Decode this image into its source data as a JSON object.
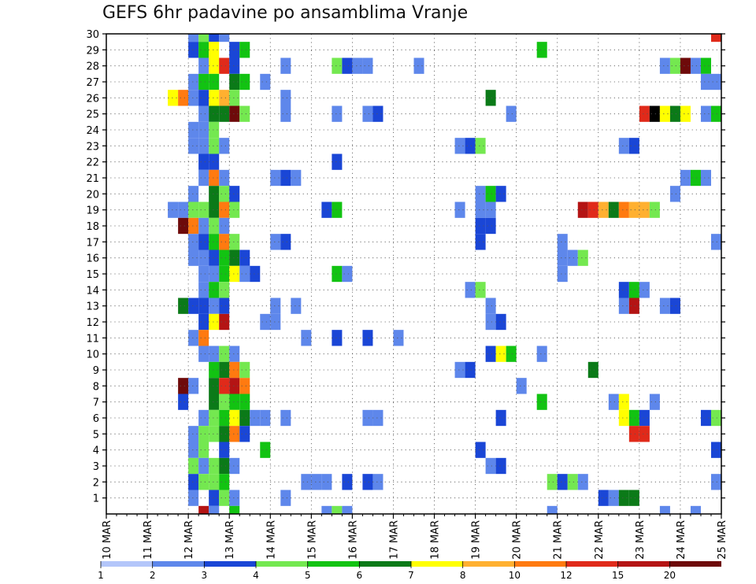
{
  "chart_data": {
    "type": "heatmap",
    "title": "GEFS 6hr padavine po ansamblima Vranje",
    "xlabel": "",
    "ylabel": "",
    "x_ticks": [
      "10 MAR",
      "11 MAR",
      "12 MAR",
      "13 MAR",
      "14 MAR",
      "15 MAR",
      "16 MAR",
      "17 MAR",
      "18 MAR",
      "19 MAR",
      "20 MAR",
      "21 MAR",
      "22 MAR",
      "23 MAR",
      "24 MAR",
      "25 MAR"
    ],
    "y_ticks": [
      1,
      2,
      3,
      4,
      5,
      6,
      7,
      8,
      9,
      10,
      11,
      12,
      13,
      14,
      15,
      16,
      17,
      18,
      19,
      20,
      21,
      22,
      23,
      24,
      25,
      26,
      27,
      28,
      29,
      30
    ],
    "x_range": [
      0,
      60
    ],
    "y_range": [
      0,
      30
    ],
    "grid": true,
    "legend": {
      "placement": "bottom",
      "labels": [
        "1",
        "2",
        "3",
        "4",
        "5",
        "6",
        "7",
        "8",
        "10",
        "12",
        "15",
        "20"
      ],
      "colors": [
        "#b3c6fa",
        "#5e87eb",
        "#1a46d6",
        "#74e850",
        "#12c312",
        "#0b7a18",
        "#ffff00",
        "#ffb030",
        "#ff7a10",
        "#e02a1a",
        "#b41414",
        "#6e0a0a"
      ]
    },
    "cells": [
      [
        30,
        8,
        1
      ],
      [
        30,
        9,
        3
      ],
      [
        30,
        10,
        2
      ],
      [
        30,
        11,
        1
      ],
      [
        30,
        59,
        9
      ],
      [
        29,
        8,
        2
      ],
      [
        29,
        9,
        4
      ],
      [
        29,
        10,
        6
      ],
      [
        29,
        12,
        2
      ],
      [
        29,
        13,
        4
      ],
      [
        29,
        42,
        4
      ],
      [
        28,
        9,
        1
      ],
      [
        28,
        10,
        6
      ],
      [
        28,
        11,
        9
      ],
      [
        28,
        12,
        2
      ],
      [
        28,
        17,
        1
      ],
      [
        28,
        22,
        3
      ],
      [
        28,
        23,
        2
      ],
      [
        28,
        24,
        1
      ],
      [
        28,
        25,
        1
      ],
      [
        28,
        30,
        1
      ],
      [
        28,
        54,
        1
      ],
      [
        28,
        55,
        3
      ],
      [
        28,
        56,
        11
      ],
      [
        28,
        57,
        1
      ],
      [
        28,
        58,
        4
      ],
      [
        27,
        8,
        1
      ],
      [
        27,
        9,
        4
      ],
      [
        27,
        10,
        4
      ],
      [
        27,
        12,
        5
      ],
      [
        27,
        13,
        4
      ],
      [
        27,
        15,
        1
      ],
      [
        27,
        58,
        1
      ],
      [
        27,
        59,
        1
      ],
      [
        26,
        6,
        6
      ],
      [
        26,
        7,
        8
      ],
      [
        26,
        8,
        1
      ],
      [
        26,
        9,
        2
      ],
      [
        26,
        10,
        6
      ],
      [
        26,
        11,
        7
      ],
      [
        26,
        12,
        3
      ],
      [
        26,
        17,
        1
      ],
      [
        26,
        37,
        5
      ],
      [
        26,
        60,
        11
      ],
      [
        25,
        9,
        1
      ],
      [
        25,
        10,
        5
      ],
      [
        25,
        11,
        5
      ],
      [
        25,
        12,
        11
      ],
      [
        25,
        13,
        3
      ],
      [
        25,
        17,
        1
      ],
      [
        25,
        22,
        1
      ],
      [
        25,
        25,
        1
      ],
      [
        25,
        26,
        2
      ],
      [
        25,
        39,
        1
      ],
      [
        25,
        52,
        9
      ],
      [
        25,
        53,
        12
      ],
      [
        25,
        54,
        6
      ],
      [
        25,
        55,
        5
      ],
      [
        25,
        56,
        6
      ],
      [
        25,
        58,
        1
      ],
      [
        25,
        59,
        4
      ],
      [
        25,
        60,
        2
      ],
      [
        25,
        61,
        9
      ],
      [
        24,
        8,
        1
      ],
      [
        24,
        9,
        1
      ],
      [
        24,
        10,
        3
      ],
      [
        23,
        8,
        1
      ],
      [
        23,
        9,
        1
      ],
      [
        23,
        10,
        3
      ],
      [
        23,
        11,
        1
      ],
      [
        23,
        34,
        1
      ],
      [
        23,
        35,
        2
      ],
      [
        23,
        36,
        3
      ],
      [
        23,
        50,
        1
      ],
      [
        23,
        51,
        2
      ],
      [
        22,
        9,
        2
      ],
      [
        22,
        10,
        2
      ],
      [
        22,
        22,
        2
      ],
      [
        21,
        9,
        1
      ],
      [
        21,
        10,
        8
      ],
      [
        21,
        11,
        1
      ],
      [
        21,
        16,
        1
      ],
      [
        21,
        17,
        2
      ],
      [
        21,
        18,
        1
      ],
      [
        21,
        56,
        1
      ],
      [
        21,
        57,
        4
      ],
      [
        21,
        58,
        1
      ],
      [
        21,
        60,
        3
      ],
      [
        20,
        8,
        1
      ],
      [
        20,
        10,
        5
      ],
      [
        20,
        11,
        3
      ],
      [
        20,
        12,
        2
      ],
      [
        20,
        36,
        1
      ],
      [
        20,
        37,
        4
      ],
      [
        20,
        38,
        2
      ],
      [
        20,
        55,
        1
      ],
      [
        19,
        6,
        1
      ],
      [
        19,
        7,
        1
      ],
      [
        19,
        8,
        3
      ],
      [
        19,
        9,
        3
      ],
      [
        19,
        10,
        5
      ],
      [
        19,
        11,
        8
      ],
      [
        19,
        12,
        3
      ],
      [
        19,
        21,
        2
      ],
      [
        19,
        22,
        4
      ],
      [
        19,
        34,
        1
      ],
      [
        19,
        36,
        1
      ],
      [
        19,
        37,
        1
      ],
      [
        19,
        46,
        10
      ],
      [
        19,
        47,
        9
      ],
      [
        19,
        48,
        7
      ],
      [
        19,
        49,
        5
      ],
      [
        19,
        50,
        8
      ],
      [
        19,
        51,
        7
      ],
      [
        19,
        52,
        7
      ],
      [
        19,
        53,
        3
      ],
      [
        18,
        7,
        11
      ],
      [
        18,
        8,
        8
      ],
      [
        18,
        9,
        1
      ],
      [
        18,
        10,
        3
      ],
      [
        18,
        11,
        1
      ],
      [
        18,
        36,
        2
      ],
      [
        18,
        37,
        2
      ],
      [
        17,
        8,
        1
      ],
      [
        17,
        9,
        2
      ],
      [
        17,
        10,
        4
      ],
      [
        17,
        11,
        8
      ],
      [
        17,
        12,
        3
      ],
      [
        17,
        16,
        1
      ],
      [
        17,
        17,
        2
      ],
      [
        17,
        36,
        2
      ],
      [
        17,
        44,
        1
      ],
      [
        17,
        59,
        1
      ],
      [
        16,
        8,
        1
      ],
      [
        16,
        9,
        1
      ],
      [
        16,
        10,
        2
      ],
      [
        16,
        11,
        4
      ],
      [
        16,
        12,
        5
      ],
      [
        16,
        13,
        2
      ],
      [
        16,
        44,
        1
      ],
      [
        16,
        45,
        1
      ],
      [
        16,
        46,
        3
      ],
      [
        15,
        9,
        1
      ],
      [
        15,
        10,
        1
      ],
      [
        15,
        11,
        4
      ],
      [
        15,
        12,
        6
      ],
      [
        15,
        13,
        1
      ],
      [
        15,
        14,
        2
      ],
      [
        15,
        22,
        4
      ],
      [
        15,
        23,
        1
      ],
      [
        15,
        44,
        1
      ],
      [
        14,
        9,
        1
      ],
      [
        14,
        10,
        4
      ],
      [
        14,
        11,
        3
      ],
      [
        14,
        35,
        1
      ],
      [
        14,
        36,
        3
      ],
      [
        14,
        50,
        2
      ],
      [
        14,
        51,
        4
      ],
      [
        14,
        52,
        1
      ],
      [
        13,
        7,
        5
      ],
      [
        13,
        8,
        2
      ],
      [
        13,
        9,
        2
      ],
      [
        13,
        10,
        1
      ],
      [
        13,
        11,
        2
      ],
      [
        13,
        16,
        1
      ],
      [
        13,
        18,
        1
      ],
      [
        13,
        37,
        1
      ],
      [
        13,
        50,
        1
      ],
      [
        13,
        51,
        10
      ],
      [
        13,
        54,
        1
      ],
      [
        13,
        55,
        2
      ],
      [
        12,
        9,
        2
      ],
      [
        12,
        10,
        6
      ],
      [
        12,
        11,
        10
      ],
      [
        12,
        15,
        1
      ],
      [
        12,
        16,
        1
      ],
      [
        12,
        37,
        1
      ],
      [
        12,
        38,
        2
      ],
      [
        12,
        60,
        3
      ],
      [
        11,
        8,
        1
      ],
      [
        11,
        9,
        8
      ],
      [
        11,
        19,
        1
      ],
      [
        11,
        22,
        2
      ],
      [
        11,
        25,
        2
      ],
      [
        11,
        28,
        1
      ],
      [
        11,
        60,
        1
      ],
      [
        10,
        9,
        1
      ],
      [
        10,
        10,
        1
      ],
      [
        10,
        11,
        3
      ],
      [
        10,
        12,
        1
      ],
      [
        10,
        37,
        2
      ],
      [
        10,
        38,
        6
      ],
      [
        10,
        39,
        4
      ],
      [
        10,
        42,
        1
      ],
      [
        9,
        10,
        4
      ],
      [
        9,
        11,
        5
      ],
      [
        9,
        12,
        8
      ],
      [
        9,
        13,
        3
      ],
      [
        9,
        34,
        1
      ],
      [
        9,
        35,
        2
      ],
      [
        9,
        47,
        5
      ],
      [
        8,
        7,
        11
      ],
      [
        8,
        8,
        1
      ],
      [
        8,
        10,
        5
      ],
      [
        8,
        11,
        9
      ],
      [
        8,
        12,
        10
      ],
      [
        8,
        13,
        8
      ],
      [
        8,
        40,
        1
      ],
      [
        7,
        7,
        2
      ],
      [
        7,
        10,
        5
      ],
      [
        7,
        11,
        3
      ],
      [
        7,
        12,
        4
      ],
      [
        7,
        13,
        4
      ],
      [
        7,
        42,
        4
      ],
      [
        7,
        49,
        1
      ],
      [
        7,
        50,
        6
      ],
      [
        7,
        53,
        1
      ],
      [
        6,
        9,
        1
      ],
      [
        6,
        10,
        3
      ],
      [
        6,
        11,
        4
      ],
      [
        6,
        12,
        6
      ],
      [
        6,
        13,
        5
      ],
      [
        6,
        14,
        1
      ],
      [
        6,
        15,
        1
      ],
      [
        6,
        17,
        1
      ],
      [
        6,
        25,
        1
      ],
      [
        6,
        26,
        1
      ],
      [
        6,
        38,
        2
      ],
      [
        6,
        50,
        6
      ],
      [
        6,
        51,
        4
      ],
      [
        6,
        52,
        2
      ],
      [
        6,
        58,
        2
      ],
      [
        6,
        59,
        3
      ],
      [
        5,
        8,
        1
      ],
      [
        5,
        9,
        3
      ],
      [
        5,
        10,
        3
      ],
      [
        5,
        11,
        5
      ],
      [
        5,
        12,
        8
      ],
      [
        5,
        13,
        2
      ],
      [
        5,
        51,
        9
      ],
      [
        5,
        52,
        9
      ],
      [
        4,
        8,
        1
      ],
      [
        4,
        9,
        3
      ],
      [
        4,
        11,
        2
      ],
      [
        4,
        15,
        4
      ],
      [
        4,
        36,
        2
      ],
      [
        4,
        59,
        2
      ],
      [
        3,
        8,
        3
      ],
      [
        3,
        9,
        1
      ],
      [
        3,
        10,
        3
      ],
      [
        3,
        11,
        5
      ],
      [
        3,
        12,
        1
      ],
      [
        3,
        37,
        1
      ],
      [
        3,
        38,
        2
      ],
      [
        2,
        8,
        2
      ],
      [
        2,
        9,
        3
      ],
      [
        2,
        10,
        3
      ],
      [
        2,
        11,
        4
      ],
      [
        2,
        19,
        1
      ],
      [
        2,
        20,
        1
      ],
      [
        2,
        21,
        1
      ],
      [
        2,
        23,
        2
      ],
      [
        2,
        25,
        2
      ],
      [
        2,
        26,
        1
      ],
      [
        2,
        43,
        3
      ],
      [
        2,
        44,
        2
      ],
      [
        2,
        45,
        3
      ],
      [
        2,
        46,
        1
      ],
      [
        2,
        59,
        1
      ],
      [
        1,
        8,
        1
      ],
      [
        1,
        10,
        2
      ],
      [
        1,
        11,
        3
      ],
      [
        1,
        12,
        1
      ],
      [
        1,
        17,
        1
      ],
      [
        1,
        48,
        2
      ],
      [
        1,
        49,
        1
      ],
      [
        1,
        50,
        5
      ],
      [
        1,
        51,
        5
      ],
      [
        0,
        9,
        10
      ],
      [
        0,
        10,
        1
      ],
      [
        0,
        12,
        4
      ],
      [
        0,
        21,
        1
      ],
      [
        0,
        22,
        3
      ],
      [
        0,
        23,
        1
      ],
      [
        0,
        43,
        1
      ],
      [
        0,
        54,
        1
      ],
      [
        0,
        57,
        1
      ]
    ]
  }
}
